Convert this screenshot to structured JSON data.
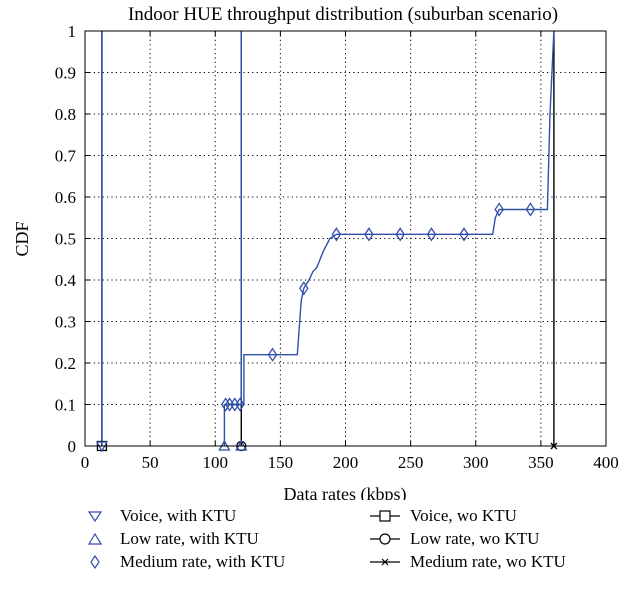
{
  "chart_data": {
    "type": "line",
    "title": "Indoor HUE throughput distribution (suburban scenario)",
    "xlabel": "Data rates (kbps)",
    "ylabel": "CDF",
    "xlim": [
      0,
      400
    ],
    "ylim": [
      0,
      1
    ],
    "xticks": [
      0,
      50,
      100,
      150,
      200,
      250,
      300,
      350,
      400
    ],
    "yticks": [
      0,
      0.1,
      0.2,
      0.3,
      0.4,
      0.5,
      0.6,
      0.7,
      0.8,
      0.9,
      1
    ],
    "grid": true,
    "legend_position": "bottom",
    "series": [
      {
        "name": "Voice, with KTU",
        "marker": "triangle-down",
        "color": "#3050a8",
        "points": [
          [
            13,
            0
          ],
          [
            13,
            1
          ]
        ],
        "markers": [
          [
            13,
            0
          ]
        ]
      },
      {
        "name": "Low rate, with KTU",
        "marker": "triangle-up",
        "color": "#3050a8",
        "points": [
          [
            107,
            0
          ],
          [
            107,
            0.1
          ],
          [
            120,
            0.1
          ],
          [
            120,
            1
          ]
        ],
        "markers": [
          [
            107,
            0
          ],
          [
            120,
            0
          ]
        ]
      },
      {
        "name": "Medium rate, with KTU",
        "marker": "diamond",
        "color": "#3050a8",
        "points": [
          [
            108,
            0.1
          ],
          [
            122,
            0.1
          ],
          [
            122,
            0.22
          ],
          [
            163,
            0.22
          ],
          [
            166,
            0.35
          ],
          [
            168,
            0.38
          ],
          [
            172,
            0.4
          ],
          [
            175,
            0.42
          ],
          [
            178,
            0.43
          ],
          [
            183,
            0.47
          ],
          [
            188,
            0.5
          ],
          [
            193,
            0.51
          ],
          [
            313,
            0.51
          ],
          [
            315,
            0.55
          ],
          [
            318,
            0.57
          ],
          [
            355,
            0.57
          ],
          [
            357,
            0.8
          ],
          [
            360,
            1
          ]
        ],
        "markers": [
          [
            108,
            0.1
          ],
          [
            111,
            0.1
          ],
          [
            115,
            0.1
          ],
          [
            119,
            0.1
          ],
          [
            144,
            0.22
          ],
          [
            168,
            0.38
          ],
          [
            193,
            0.51
          ],
          [
            218,
            0.51
          ],
          [
            242,
            0.51
          ],
          [
            266,
            0.51
          ],
          [
            291,
            0.51
          ],
          [
            318,
            0.57
          ],
          [
            342,
            0.57
          ]
        ]
      },
      {
        "name": "Voice, wo KTU",
        "marker": "square",
        "color": "#000000",
        "points": [
          [
            13,
            0
          ],
          [
            13,
            1
          ]
        ],
        "markers": [
          [
            13,
            0
          ]
        ]
      },
      {
        "name": "Low rate, wo KTU",
        "marker": "circle",
        "color": "#000000",
        "points": [
          [
            120,
            0
          ],
          [
            120,
            1
          ]
        ],
        "markers": [
          [
            120,
            0
          ]
        ]
      },
      {
        "name": "Medium rate, wo KTU",
        "marker": "x",
        "color": "#000000",
        "points": [
          [
            360,
            0
          ],
          [
            360,
            1
          ]
        ],
        "markers": [
          [
            360,
            0
          ]
        ]
      }
    ]
  }
}
